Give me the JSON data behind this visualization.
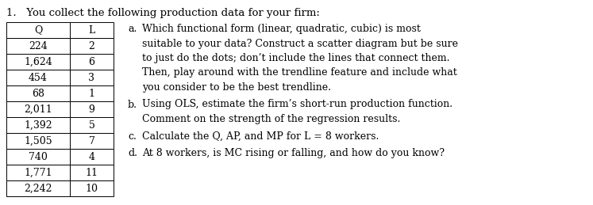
{
  "title": "1.   You collect the following production data for your firm:",
  "table_headers": [
    "Q",
    "L"
  ],
  "table_rows": [
    [
      "224",
      "2"
    ],
    [
      "1,624",
      "6"
    ],
    [
      "454",
      "3"
    ],
    [
      "68",
      "1"
    ],
    [
      "2,011",
      "9"
    ],
    [
      "1,392",
      "5"
    ],
    [
      "1,505",
      "7"
    ],
    [
      "740",
      "4"
    ],
    [
      "1,771",
      "11"
    ],
    [
      "2,242",
      "10"
    ]
  ],
  "questions": [
    {
      "label": "a.",
      "lines": [
        "Which functional form (linear, quadratic, cubic) is most",
        "suitable to your data? Construct a scatter diagram but be sure",
        "to just do the dots; don’t include the lines that connect them.",
        "Then, play around with the trendline feature and include what",
        "you consider to be the best trendline."
      ]
    },
    {
      "label": "b.",
      "lines": [
        "Using OLS, estimate the firm’s short-run production function.",
        "Comment on the strength of the regression results."
      ]
    },
    {
      "label": "c.",
      "lines": [
        "Calculate the Q, AP, and MP for L = 8 workers."
      ]
    },
    {
      "label": "d.",
      "lines": [
        "At 8 workers, is MC rising or falling, and how do you know?"
      ]
    }
  ],
  "bg_color": "#ffffff",
  "text_color": "#000000",
  "font_family": "serif",
  "title_fontsize": 9.5,
  "body_fontsize": 9.0
}
